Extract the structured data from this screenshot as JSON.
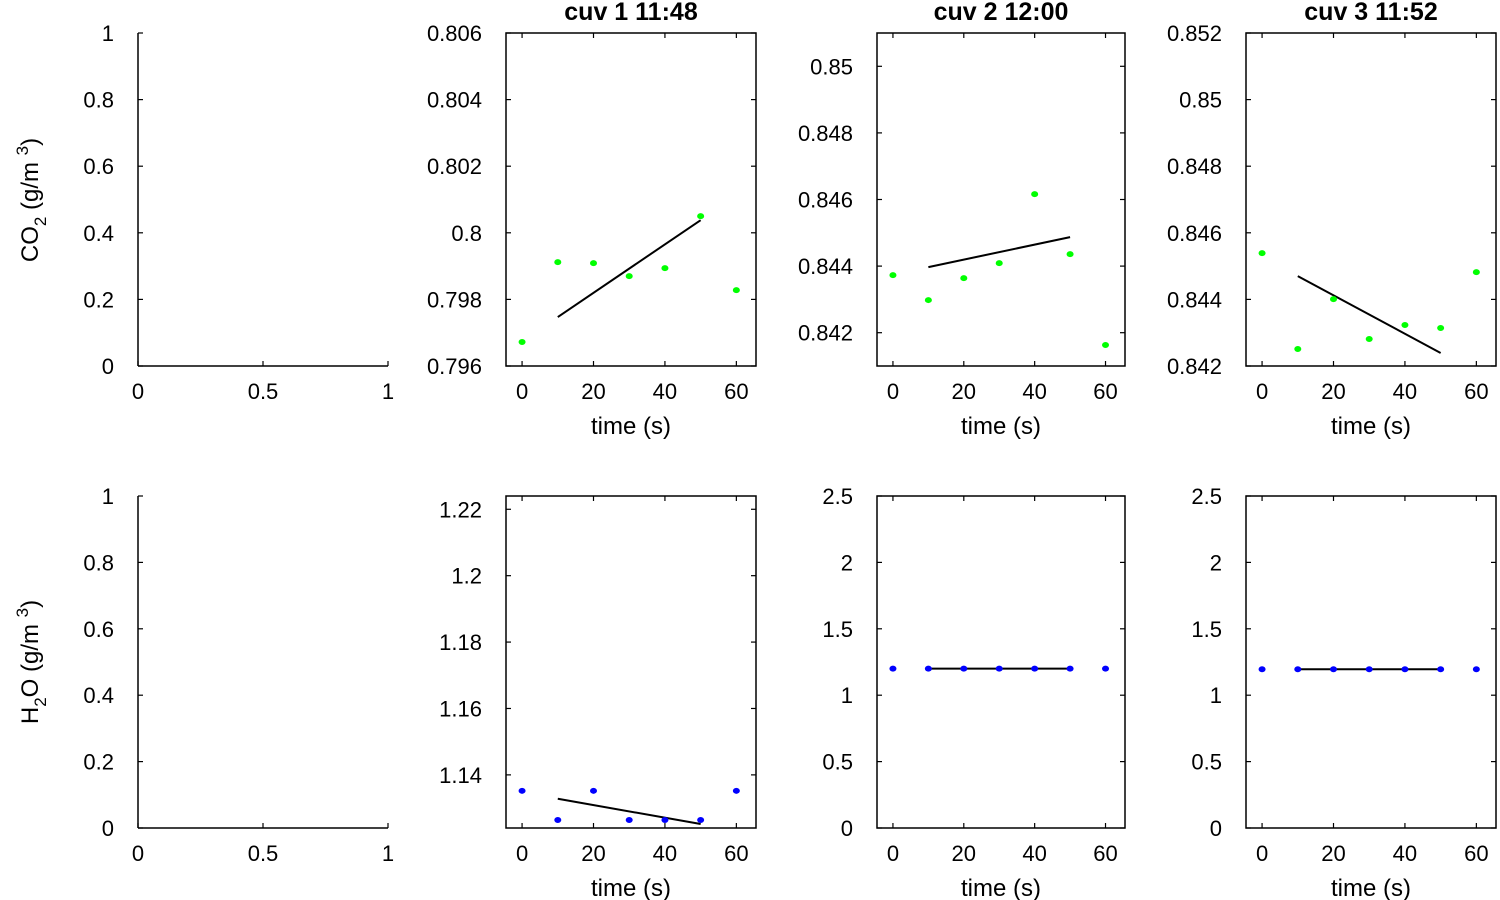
{
  "row_labels": [
    {
      "main": "CO",
      "sub": "2",
      "unit": " (g/m ",
      "sup": "3",
      "close": ")"
    },
    {
      "main": "H",
      "sub": "2",
      "main2": "O",
      "unit": " (g/m ",
      "sup": "3",
      "close": ")"
    }
  ],
  "chart_data": [
    {
      "type": "scatter",
      "title": "",
      "xlabel": "",
      "xlim": [
        0,
        1
      ],
      "xticks": [
        0,
        0.5,
        1
      ],
      "xtick_labels": [
        "0",
        "0.5",
        "1"
      ],
      "ylim": [
        0,
        1
      ],
      "yticks": [
        0,
        0.2,
        0.4,
        0.6,
        0.8,
        1
      ],
      "ytick_labels": [
        "0",
        "0.2",
        "0.4",
        "0.6",
        "0.8",
        "1"
      ],
      "box": false,
      "points": [],
      "fit": null,
      "color": "#00ff00"
    },
    {
      "type": "scatter",
      "title": "cuv 1 11:48",
      "xlabel": "time (s)",
      "xlim": [
        -4.5,
        65.5
      ],
      "xticks": [
        0,
        20,
        40,
        60
      ],
      "xtick_labels": [
        "0",
        "20",
        "40",
        "60"
      ],
      "ylim": [
        0.796,
        0.806
      ],
      "yticks": [
        0.796,
        0.798,
        0.8,
        0.802,
        0.804,
        0.806
      ],
      "ytick_labels": [
        "0.796",
        "0.798",
        "0.8",
        "0.802",
        "0.804",
        "0.806"
      ],
      "box": true,
      "points": [
        [
          0,
          0.79672
        ],
        [
          10,
          0.79912
        ],
        [
          20,
          0.79909
        ],
        [
          30,
          0.7987
        ],
        [
          40,
          0.79894
        ],
        [
          50,
          0.8005
        ],
        [
          60,
          0.79828
        ]
      ],
      "fit": [
        10,
        0.79747,
        50,
        0.80038
      ],
      "color": "#00ff00"
    },
    {
      "type": "scatter",
      "title": "cuv 2 12:00",
      "xlabel": "time (s)",
      "xlim": [
        -4.5,
        65.5
      ],
      "xticks": [
        0,
        20,
        40,
        60
      ],
      "xtick_labels": [
        "0",
        "20",
        "40",
        "60"
      ],
      "ylim": [
        0.841,
        0.851
      ],
      "yticks": [
        0.842,
        0.844,
        0.846,
        0.848,
        0.85
      ],
      "ytick_labels": [
        "0.842",
        "0.844",
        "0.846",
        "0.848",
        "0.85"
      ],
      "box": true,
      "points": [
        [
          0,
          0.84373
        ],
        [
          10,
          0.84298
        ],
        [
          20,
          0.84364
        ],
        [
          30,
          0.84409
        ],
        [
          40,
          0.84616
        ],
        [
          50,
          0.84436
        ],
        [
          60,
          0.84163
        ]
      ],
      "fit": [
        10,
        0.84397,
        50,
        0.84487
      ],
      "color": "#00ff00"
    },
    {
      "type": "scatter",
      "title": "cuv 3 11:52",
      "xlabel": "time (s)",
      "xlim": [
        -4.5,
        65.5
      ],
      "xticks": [
        0,
        20,
        40,
        60
      ],
      "xtick_labels": [
        "0",
        "20",
        "40",
        "60"
      ],
      "ylim": [
        0.842,
        0.852
      ],
      "yticks": [
        0.842,
        0.844,
        0.846,
        0.848,
        0.85,
        0.852
      ],
      "ytick_labels": [
        "0.842",
        "0.844",
        "0.846",
        "0.848",
        "0.85",
        "0.852"
      ],
      "box": true,
      "points": [
        [
          0,
          0.84539
        ],
        [
          10,
          0.84251
        ],
        [
          20,
          0.84401
        ],
        [
          30,
          0.84281
        ],
        [
          40,
          0.84323
        ],
        [
          50,
          0.84314
        ],
        [
          60,
          0.84482
        ]
      ],
      "fit": [
        10,
        0.8447,
        50,
        0.84239
      ],
      "color": "#00ff00"
    },
    {
      "type": "scatter",
      "title": "",
      "xlabel": "",
      "xlim": [
        0,
        1
      ],
      "xticks": [
        0,
        0.5,
        1
      ],
      "xtick_labels": [
        "0",
        "0.5",
        "1"
      ],
      "ylim": [
        0,
        1
      ],
      "yticks": [
        0,
        0.2,
        0.4,
        0.6,
        0.8,
        1
      ],
      "ytick_labels": [
        "0",
        "0.2",
        "0.4",
        "0.6",
        "0.8",
        "1"
      ],
      "box": false,
      "points": [],
      "fit": null,
      "color": "#0000ff"
    },
    {
      "type": "scatter",
      "title": "",
      "xlabel": "time (s)",
      "xlim": [
        -4.5,
        65.5
      ],
      "xticks": [
        0,
        20,
        40,
        60
      ],
      "xtick_labels": [
        "0",
        "20",
        "40",
        "60"
      ],
      "ylim": [
        1.124,
        1.224
      ],
      "yticks": [
        1.14,
        1.16,
        1.18,
        1.2,
        1.22
      ],
      "ytick_labels": [
        "1.14",
        "1.16",
        "1.18",
        "1.2",
        "1.22"
      ],
      "box": true,
      "points": [
        [
          0,
          1.1352
        ],
        [
          10,
          1.1264
        ],
        [
          20,
          1.1352
        ],
        [
          30,
          1.1264
        ],
        [
          40,
          1.1264
        ],
        [
          50,
          1.1264
        ],
        [
          60,
          1.1352
        ]
      ],
      "fit": [
        10,
        1.1328,
        50,
        1.1252
      ],
      "color": "#0000ff"
    },
    {
      "type": "scatter",
      "title": "",
      "xlabel": "time (s)",
      "xlim": [
        -4.5,
        65.5
      ],
      "xticks": [
        0,
        20,
        40,
        60
      ],
      "xtick_labels": [
        "0",
        "20",
        "40",
        "60"
      ],
      "ylim": [
        0,
        2.5
      ],
      "yticks": [
        0,
        0.5,
        1,
        1.5,
        2,
        2.5
      ],
      "ytick_labels": [
        "0",
        "0.5",
        "1",
        "1.5",
        "2",
        "2.5"
      ],
      "box": true,
      "points": [
        [
          0,
          1.2
        ],
        [
          10,
          1.2
        ],
        [
          20,
          1.2
        ],
        [
          30,
          1.2
        ],
        [
          40,
          1.2
        ],
        [
          50,
          1.2
        ],
        [
          60,
          1.2
        ]
      ],
      "fit": [
        10,
        1.2,
        50,
        1.2
      ],
      "color": "#0000ff"
    },
    {
      "type": "scatter",
      "title": "",
      "xlabel": "time (s)",
      "xlim": [
        -4.5,
        65.5
      ],
      "xticks": [
        0,
        20,
        40,
        60
      ],
      "xtick_labels": [
        "0",
        "20",
        "40",
        "60"
      ],
      "ylim": [
        0,
        2.5
      ],
      "yticks": [
        0,
        0.5,
        1,
        1.5,
        2,
        2.5
      ],
      "ytick_labels": [
        "0",
        "0.5",
        "1",
        "1.5",
        "2",
        "2.5"
      ],
      "box": true,
      "points": [
        [
          0,
          1.195
        ],
        [
          10,
          1.195
        ],
        [
          20,
          1.195
        ],
        [
          30,
          1.195
        ],
        [
          40,
          1.195
        ],
        [
          50,
          1.195
        ],
        [
          60,
          1.195
        ]
      ],
      "fit": [
        10,
        1.195,
        50,
        1.195
      ],
      "color": "#0000ff"
    }
  ]
}
